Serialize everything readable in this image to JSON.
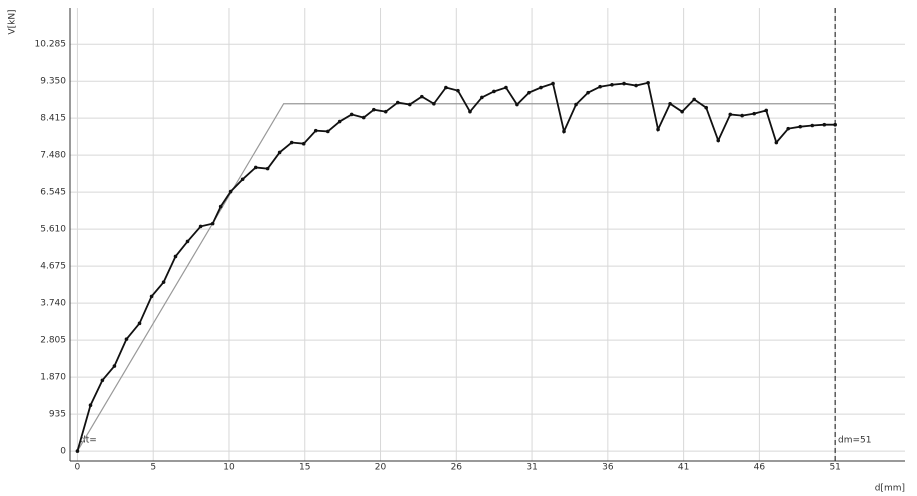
{
  "chart_data": {
    "type": "line",
    "x_label": "d[mm]",
    "y_label": "V[kN]",
    "annotations": [
      "dt=",
      "dm=51"
    ],
    "vline": 51,
    "xlim": [
      -0.5,
      55.7
    ],
    "ylim": [
      -0.25,
      11.2
    ],
    "xticks": [
      0,
      {
        "value": 5.1,
        "label": "5"
      },
      {
        "value": 10.2,
        "label": "10"
      },
      {
        "value": 15.3,
        "label": "15"
      },
      {
        "value": 20.4,
        "label": "20"
      },
      {
        "value": 25.5,
        "label": "26"
      },
      {
        "value": 30.6,
        "label": "31"
      },
      {
        "value": 35.7,
        "label": "36"
      },
      {
        "value": 40.8,
        "label": "41"
      },
      {
        "value": 45.9,
        "label": "46"
      },
      51
    ],
    "yticks": [
      0,
      {
        "value": 0.935,
        "label": "935"
      },
      {
        "value": 1.87,
        "label": "1.870"
      },
      {
        "value": 2.805,
        "label": "2.805"
      },
      {
        "value": 3.74,
        "label": "3.740"
      },
      {
        "value": 4.675,
        "label": "4.675"
      },
      {
        "value": 5.61,
        "label": "5.610"
      },
      {
        "value": 6.545,
        "label": "6.545"
      },
      {
        "value": 7.48,
        "label": "7.480"
      },
      {
        "value": 8.415,
        "label": "8.415"
      },
      {
        "value": 9.35,
        "label": "9.350"
      },
      {
        "value": 10.285,
        "label": "10.285"
      }
    ],
    "grid": true,
    "series": [
      {
        "color": "#999999",
        "markers": false,
        "x": [
          0,
          13.88,
          51
        ],
        "values": [
          0,
          8.78,
          8.78
        ]
      },
      {
        "color": "#111111",
        "markers": true,
        "x": [
          0,
          0.88,
          1.68,
          2.49,
          3.3,
          4.18,
          4.99,
          5.8,
          6.6,
          7.41,
          8.29,
          9.1,
          9.64,
          10.31,
          11.12,
          12.0,
          12.8,
          13.61,
          14.42,
          15.23,
          16.04,
          16.85,
          17.65,
          18.46,
          19.27,
          19.95,
          20.75,
          21.56,
          22.37,
          23.18,
          23.99,
          24.8,
          25.61,
          26.42,
          27.22,
          28.03,
          28.84,
          29.58,
          30.39,
          31.2,
          32.01,
          32.75,
          33.56,
          34.37,
          35.18,
          35.98,
          36.79,
          37.6,
          38.41,
          39.08,
          39.89,
          40.7,
          41.51,
          42.32,
          43.13,
          43.94,
          44.74,
          45.55,
          46.36,
          47.04,
          47.84,
          48.65,
          49.46,
          50.27,
          51
        ],
        "values": [
          0,
          1.16,
          1.79,
          2.15,
          2.83,
          3.23,
          3.91,
          4.27,
          4.92,
          5.3,
          5.68,
          5.75,
          6.18,
          6.56,
          6.87,
          7.17,
          7.14,
          7.55,
          7.8,
          7.77,
          8.1,
          8.08,
          8.33,
          8.51,
          8.43,
          8.63,
          8.58,
          8.81,
          8.76,
          8.96,
          8.78,
          9.19,
          9.11,
          8.58,
          8.94,
          9.09,
          9.19,
          8.76,
          9.06,
          9.19,
          9.29,
          8.08,
          8.76,
          9.06,
          9.21,
          9.26,
          9.29,
          9.24,
          9.31,
          8.13,
          8.78,
          8.58,
          8.89,
          8.68,
          7.85,
          8.51,
          8.48,
          8.53,
          8.61,
          7.8,
          8.15,
          8.2,
          8.23,
          8.25,
          8.25
        ]
      }
    ]
  }
}
